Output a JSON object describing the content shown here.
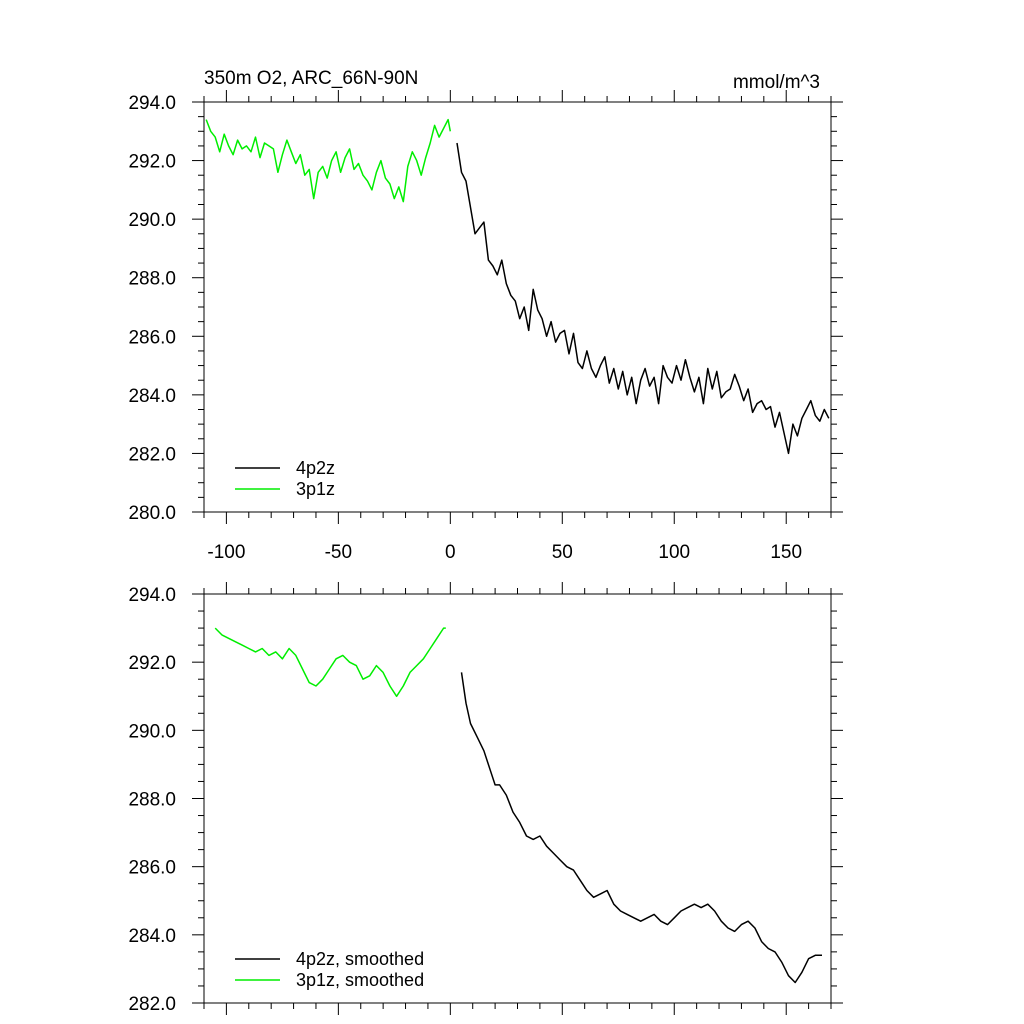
{
  "chart_data": [
    {
      "type": "line",
      "title": "350m O2, ARC_66N-90N",
      "units": "mmol/m^3",
      "xlim": [
        -110,
        170
      ],
      "ylim": [
        280,
        294
      ],
      "x_ticks": [
        -100,
        -50,
        0,
        50,
        100,
        150
      ],
      "x_tick_labels": [
        "-100",
        "-50",
        "0",
        "50",
        "100",
        "150"
      ],
      "y_ticks": [
        280,
        282,
        284,
        286,
        288,
        290,
        292,
        294
      ],
      "y_tick_labels": [
        "280.0",
        "282.0",
        "284.0",
        "286.0",
        "288.0",
        "290.0",
        "292.0",
        "294.0"
      ],
      "legend_position": "bottom-left",
      "series": [
        {
          "name": "4p2z",
          "color": "#000000",
          "x": [
            3,
            5,
            7,
            9,
            11,
            13,
            15,
            17,
            19,
            21,
            23,
            25,
            27,
            29,
            31,
            33,
            35,
            37,
            39,
            41,
            43,
            45,
            47,
            49,
            51,
            53,
            55,
            57,
            59,
            61,
            63,
            65,
            67,
            69,
            71,
            73,
            75,
            77,
            79,
            81,
            83,
            85,
            87,
            89,
            91,
            93,
            95,
            97,
            99,
            101,
            103,
            105,
            107,
            109,
            111,
            113,
            115,
            117,
            119,
            121,
            123,
            125,
            127,
            129,
            131,
            133,
            135,
            137,
            139,
            141,
            143,
            145,
            147,
            149,
            151,
            153,
            155,
            157,
            159,
            161,
            163,
            165,
            167,
            169
          ],
          "y": [
            292.6,
            291.6,
            291.3,
            290.4,
            289.5,
            289.7,
            289.9,
            288.6,
            288.4,
            288.1,
            288.6,
            287.8,
            287.4,
            287.2,
            286.6,
            287.0,
            286.2,
            287.6,
            286.9,
            286.6,
            286.0,
            286.5,
            285.8,
            286.1,
            286.2,
            285.4,
            286.1,
            285.1,
            284.9,
            285.5,
            284.9,
            284.6,
            285.0,
            285.3,
            284.4,
            284.9,
            284.2,
            284.8,
            284.0,
            284.6,
            283.7,
            284.5,
            284.9,
            284.3,
            284.6,
            283.7,
            285.0,
            284.6,
            284.4,
            285.0,
            284.5,
            285.2,
            284.6,
            284.1,
            284.6,
            283.7,
            284.9,
            284.2,
            284.8,
            283.9,
            284.1,
            284.2,
            284.7,
            284.3,
            283.8,
            284.2,
            283.4,
            283.7,
            283.8,
            283.5,
            283.6,
            282.9,
            283.4,
            282.7,
            282.0,
            283.0,
            282.6,
            283.2,
            283.5,
            283.8,
            283.3,
            283.1,
            283.5,
            283.2
          ]
        },
        {
          "name": "3p1z",
          "color": "#00ee00",
          "x": [
            -109,
            -107,
            -105,
            -103,
            -101,
            -99,
            -97,
            -95,
            -93,
            -91,
            -89,
            -87,
            -85,
            -83,
            -81,
            -79,
            -77,
            -75,
            -73,
            -71,
            -69,
            -67,
            -65,
            -63,
            -61,
            -59,
            -57,
            -55,
            -53,
            -51,
            -49,
            -47,
            -45,
            -43,
            -41,
            -39,
            -37,
            -35,
            -33,
            -31,
            -29,
            -27,
            -25,
            -23,
            -21,
            -19,
            -17,
            -15,
            -13,
            -11,
            -9,
            -7,
            -5,
            -3,
            -1,
            0
          ],
          "y": [
            293.4,
            293.0,
            292.8,
            292.3,
            292.9,
            292.5,
            292.2,
            292.7,
            292.4,
            292.5,
            292.3,
            292.8,
            292.1,
            292.6,
            292.5,
            292.4,
            291.6,
            292.2,
            292.7,
            292.3,
            291.9,
            292.2,
            291.5,
            291.7,
            290.7,
            291.6,
            291.8,
            291.4,
            292.0,
            292.3,
            291.6,
            292.1,
            292.4,
            291.7,
            291.9,
            291.5,
            291.3,
            291.0,
            291.6,
            292.0,
            291.4,
            291.2,
            290.7,
            291.1,
            290.6,
            291.8,
            292.3,
            292.0,
            291.5,
            292.1,
            292.6,
            293.2,
            292.8,
            293.1,
            293.4,
            293.0
          ]
        }
      ]
    },
    {
      "type": "line",
      "xlim": [
        -110,
        170
      ],
      "ylim": [
        282,
        294
      ],
      "y_ticks": [
        282,
        284,
        286,
        288,
        290,
        292,
        294
      ],
      "y_tick_labels": [
        "282.0",
        "284.0",
        "286.0",
        "288.0",
        "290.0",
        "292.0",
        "294.0"
      ],
      "x_ticks": [
        -100,
        -50,
        0,
        50,
        100,
        150
      ],
      "legend_position": "bottom-left",
      "series": [
        {
          "name": "4p2z, smoothed",
          "color": "#000000",
          "x": [
            5,
            7,
            9,
            12,
            15,
            18,
            20,
            22,
            25,
            28,
            31,
            34,
            37,
            40,
            43,
            46,
            49,
            52,
            55,
            58,
            61,
            64,
            67,
            70,
            73,
            76,
            79,
            82,
            85,
            88,
            91,
            94,
            97,
            100,
            103,
            106,
            109,
            112,
            115,
            118,
            121,
            124,
            127,
            130,
            133,
            136,
            139,
            142,
            145,
            148,
            151,
            154,
            157,
            160,
            163,
            166
          ],
          "y": [
            291.7,
            290.8,
            290.2,
            289.8,
            289.4,
            288.8,
            288.4,
            288.4,
            288.1,
            287.6,
            287.3,
            286.9,
            286.8,
            286.9,
            286.6,
            286.4,
            286.2,
            286.0,
            285.9,
            285.6,
            285.3,
            285.1,
            285.2,
            285.3,
            284.9,
            284.7,
            284.6,
            284.5,
            284.4,
            284.5,
            284.6,
            284.4,
            284.3,
            284.5,
            284.7,
            284.8,
            284.9,
            284.8,
            284.9,
            284.7,
            284.4,
            284.2,
            284.1,
            284.3,
            284.4,
            284.2,
            283.8,
            283.6,
            283.5,
            283.2,
            282.8,
            282.6,
            282.9,
            283.3,
            283.4,
            283.4
          ]
        },
        {
          "name": "3p1z, smoothed",
          "color": "#00ee00",
          "x": [
            -105,
            -102,
            -99,
            -96,
            -93,
            -90,
            -87,
            -84,
            -81,
            -78,
            -75,
            -72,
            -69,
            -66,
            -63,
            -60,
            -57,
            -54,
            -51,
            -48,
            -45,
            -42,
            -39,
            -36,
            -33,
            -30,
            -27,
            -24,
            -21,
            -18,
            -15,
            -12,
            -9,
            -6,
            -3,
            -2
          ],
          "y": [
            293.0,
            292.8,
            292.7,
            292.6,
            292.5,
            292.4,
            292.3,
            292.4,
            292.2,
            292.3,
            292.1,
            292.4,
            292.2,
            291.8,
            291.4,
            291.3,
            291.5,
            291.8,
            292.1,
            292.2,
            292.0,
            291.9,
            291.5,
            291.6,
            291.9,
            291.7,
            291.3,
            291.0,
            291.3,
            291.7,
            291.9,
            292.1,
            292.4,
            292.7,
            293.0,
            293.0
          ]
        }
      ]
    }
  ]
}
